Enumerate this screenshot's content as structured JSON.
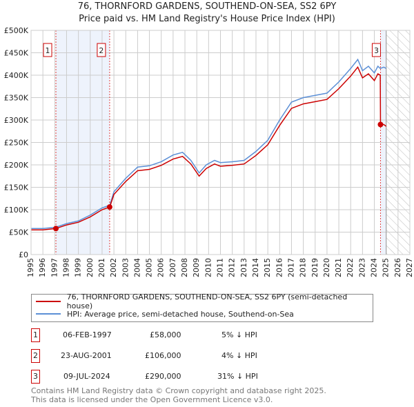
{
  "chart_data": {
    "type": "line",
    "title": "76, THORNFORD GARDENS, SOUTHEND-ON-SEA, SS2 6PY",
    "subtitle": "Price paid vs. HM Land Registry's House Price Index (HPI)",
    "xlim": [
      1995,
      2027
    ],
    "ylim": [
      0,
      500000
    ],
    "x_ticks": [
      "1995",
      "1996",
      "1997",
      "1998",
      "1999",
      "2000",
      "2001",
      "2002",
      "2003",
      "2004",
      "2005",
      "2006",
      "2007",
      "2008",
      "2009",
      "2010",
      "2011",
      "2012",
      "2013",
      "2014",
      "2015",
      "2016",
      "2017",
      "2018",
      "2019",
      "2020",
      "2021",
      "2022",
      "2023",
      "2024",
      "2025",
      "2026",
      "2027"
    ],
    "y_ticks": [
      {
        "v": 0,
        "label": "£0"
      },
      {
        "v": 50000,
        "label": "£50K"
      },
      {
        "v": 100000,
        "label": "£100K"
      },
      {
        "v": 150000,
        "label": "£150K"
      },
      {
        "v": 200000,
        "label": "£200K"
      },
      {
        "v": 250000,
        "label": "£250K"
      },
      {
        "v": 300000,
        "label": "£300K"
      },
      {
        "v": 350000,
        "label": "£350K"
      },
      {
        "v": 400000,
        "label": "£400K"
      },
      {
        "v": 450000,
        "label": "£450K"
      },
      {
        "v": 500000,
        "label": "£500K"
      }
    ],
    "grid": true,
    "forecast_from": 2025.0,
    "series": [
      {
        "name": "76, THORNFORD GARDENS, SOUTHEND-ON-SEA, SS2 6PY (semi-detached house)",
        "color": "#cc0000",
        "x": [
          1995,
          1996,
          1997.1,
          1998,
          1999,
          2000,
          2001,
          2001.65,
          2002,
          2003,
          2004,
          2005,
          2006,
          2007,
          2007.8,
          2008.5,
          2009.2,
          2009.8,
          2010.5,
          2011,
          2012,
          2013,
          2014,
          2015,
          2016,
          2016.5,
          2017,
          2018,
          2019,
          2020,
          2021,
          2022,
          2022.6,
          2023,
          2023.5,
          2024,
          2024.3,
          2024.5,
          2024.52,
          2024.8,
          2025
        ],
        "y": [
          55000,
          55000,
          58000,
          66000,
          72000,
          84000,
          100000,
          106000,
          134000,
          163000,
          187000,
          190000,
          199000,
          213000,
          219000,
          202000,
          175000,
          192000,
          202000,
          197000,
          199000,
          202000,
          221000,
          245000,
          288000,
          307000,
          326000,
          336000,
          341000,
          346000,
          370000,
          398000,
          418000,
          394000,
          403000,
          388000,
          403000,
          400000,
          290000,
          290000,
          286000
        ]
      },
      {
        "name": "HPI: Average price, semi-detached house, Southend-on-Sea",
        "color": "#5b8fd6",
        "x": [
          1995,
          1996,
          1997.1,
          1998,
          1999,
          2000,
          2001,
          2001.65,
          2002,
          2003,
          2004,
          2005,
          2006,
          2007,
          2007.8,
          2008.5,
          2009.2,
          2009.8,
          2010.5,
          2011,
          2012,
          2013,
          2014,
          2015,
          2016,
          2016.5,
          2017,
          2018,
          2019,
          2020,
          2021,
          2022,
          2022.6,
          2023,
          2023.5,
          2024,
          2024.3,
          2024.5,
          2024.8,
          2025
        ],
        "y": [
          58000,
          58000,
          61000,
          69000,
          75000,
          88000,
          104000,
          110000,
          140000,
          170000,
          195000,
          198000,
          207000,
          222000,
          228000,
          210000,
          182000,
          200000,
          210000,
          205000,
          207000,
          210000,
          230000,
          255000,
          300000,
          320000,
          340000,
          350000,
          355000,
          360000,
          385000,
          415000,
          435000,
          410000,
          420000,
          405000,
          420000,
          415000,
          418000,
          415000
        ]
      }
    ],
    "sales": [
      {
        "id": "1",
        "x": 1997.1,
        "date": "06-FEB-1997",
        "price": 58000,
        "price_label": "£58,000",
        "hpi": "5% ↓ HPI"
      },
      {
        "id": "2",
        "x": 2001.64,
        "date": "23-AUG-2001",
        "price": 106000,
        "price_label": "£106,000",
        "hpi": "4% ↓ HPI"
      },
      {
        "id": "3",
        "x": 2024.52,
        "date": "09-JUL-2024",
        "price": 290000,
        "price_label": "£290,000",
        "hpi": "31% ↓ HPI"
      }
    ],
    "legend_placement": "below"
  },
  "footer": [
    "Contains HM Land Registry data © Crown copyright and database right 2025.",
    "This data is licensed under the Open Government Licence v3.0."
  ]
}
